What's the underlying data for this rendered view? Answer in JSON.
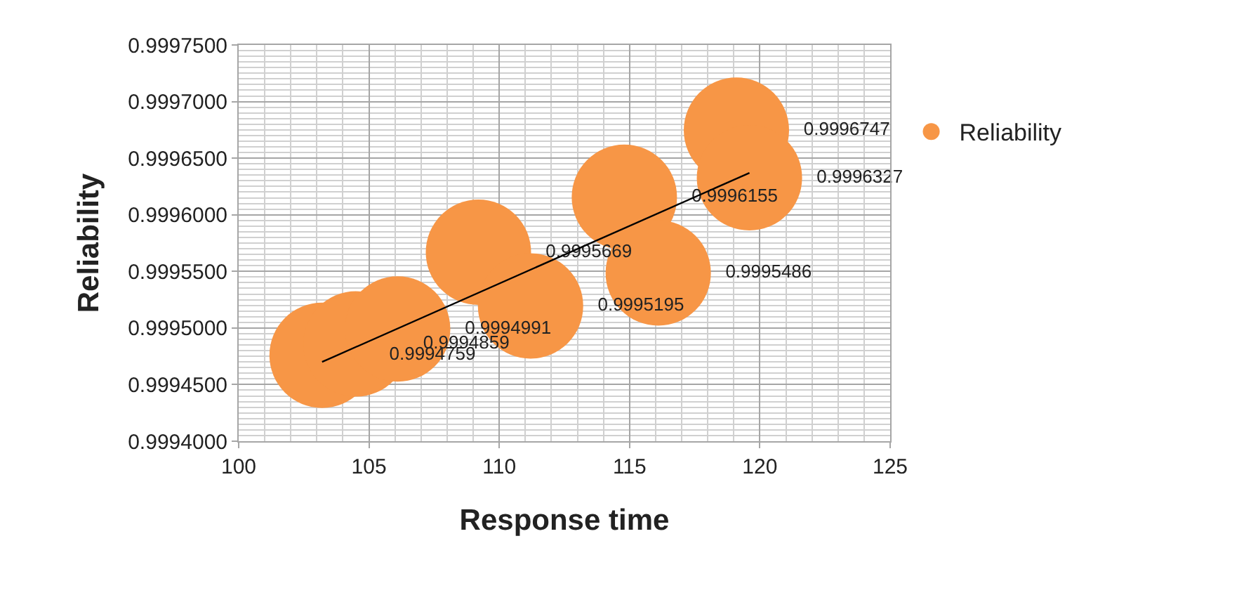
{
  "chart_data": {
    "type": "bubble",
    "xlabel": "Response time",
    "ylabel": "Reliability",
    "xlim": [
      100,
      125
    ],
    "xticks": [
      100,
      105,
      110,
      115,
      120,
      125
    ],
    "ylim": [
      0.9994,
      0.99975
    ],
    "yticks": [
      {
        "value": 0.9994,
        "label": "0.9994000"
      },
      {
        "value": 0.99945,
        "label": "0.9994500"
      },
      {
        "value": 0.9995,
        "label": "0.9995000"
      },
      {
        "value": 0.99955,
        "label": "0.9995500"
      },
      {
        "value": 0.9996,
        "label": "0.9996000"
      },
      {
        "value": 0.99965,
        "label": "0.9996500"
      },
      {
        "value": 0.9997,
        "label": "0.9997000"
      },
      {
        "value": 0.99975,
        "label": "0.9997500"
      }
    ],
    "grid": true,
    "legend": "right",
    "series": [
      {
        "name": "Reliability",
        "color": "#f79646",
        "value_labels": [
          "0.9994759",
          "0.9994859",
          "0.9994991",
          "0.9995669",
          "0.9995195",
          "0.9996155",
          "0.9995486",
          "0.9996747",
          "0.9996327"
        ],
        "x": [
          103.2,
          104.5,
          106.1,
          109.2,
          111.2,
          114.8,
          116.1,
          119.1,
          119.6
        ],
        "values": [
          0.9994759,
          0.9994859,
          0.9994991,
          0.9995669,
          0.9995195,
          0.9996155,
          0.9995486,
          0.9996747,
          0.9996327
        ],
        "sizes": [
          1,
          1,
          1,
          1,
          1,
          1,
          1,
          1,
          1
        ]
      },
      {
        "type": "line",
        "color": "#000000",
        "x": [
          103.2,
          119.6
        ],
        "values": [
          0.99947,
          0.999637
        ]
      }
    ]
  }
}
